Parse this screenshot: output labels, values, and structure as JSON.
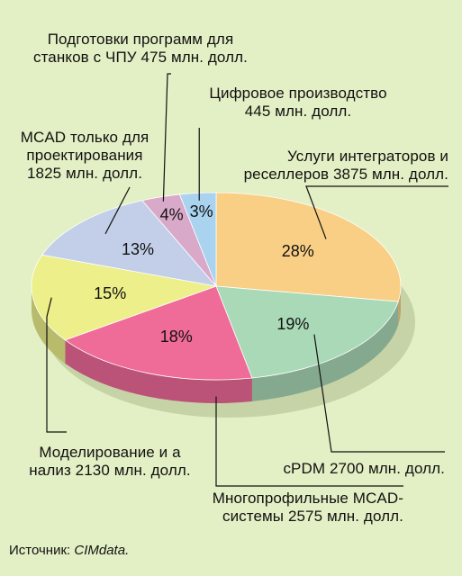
{
  "chart_data": {
    "type": "pie",
    "slices": [
      {
        "label": "Услуги интеграторов и\nреселлеров 3875 млн. долл.",
        "percent_label": "28%",
        "value": 3875,
        "color": "#f9cf86"
      },
      {
        "label": "cPDM 2700 млн. долл.",
        "percent_label": "19%",
        "value": 2700,
        "color": "#a9d9b7"
      },
      {
        "label": "Многопрофильные MCAD-\nсистемы 2575 млн. долл.",
        "percent_label": "18%",
        "value": 2575,
        "color": "#ef6b98"
      },
      {
        "label": "Моделирование и а\nнализ 2130 млн. долл.",
        "percent_label": "15%",
        "value": 2130,
        "color": "#ecef8a"
      },
      {
        "label": "MCAD только для\nпроектирования\n1825 млн. долл.",
        "percent_label": "13%",
        "value": 1825,
        "color": "#c3cfe9"
      },
      {
        "label": "Подготовки программ для\nстанков с ЧПУ 475 млн. долл.",
        "percent_label": "4%",
        "value": 475,
        "color": "#d9a9c9"
      },
      {
        "label": "Цифровое производство\n445 млн. долл.",
        "percent_label": "3%",
        "value": 445,
        "color": "#a9d3ef"
      }
    ]
  },
  "source": {
    "prefix": "Источник: ",
    "name": "CIMdata."
  }
}
